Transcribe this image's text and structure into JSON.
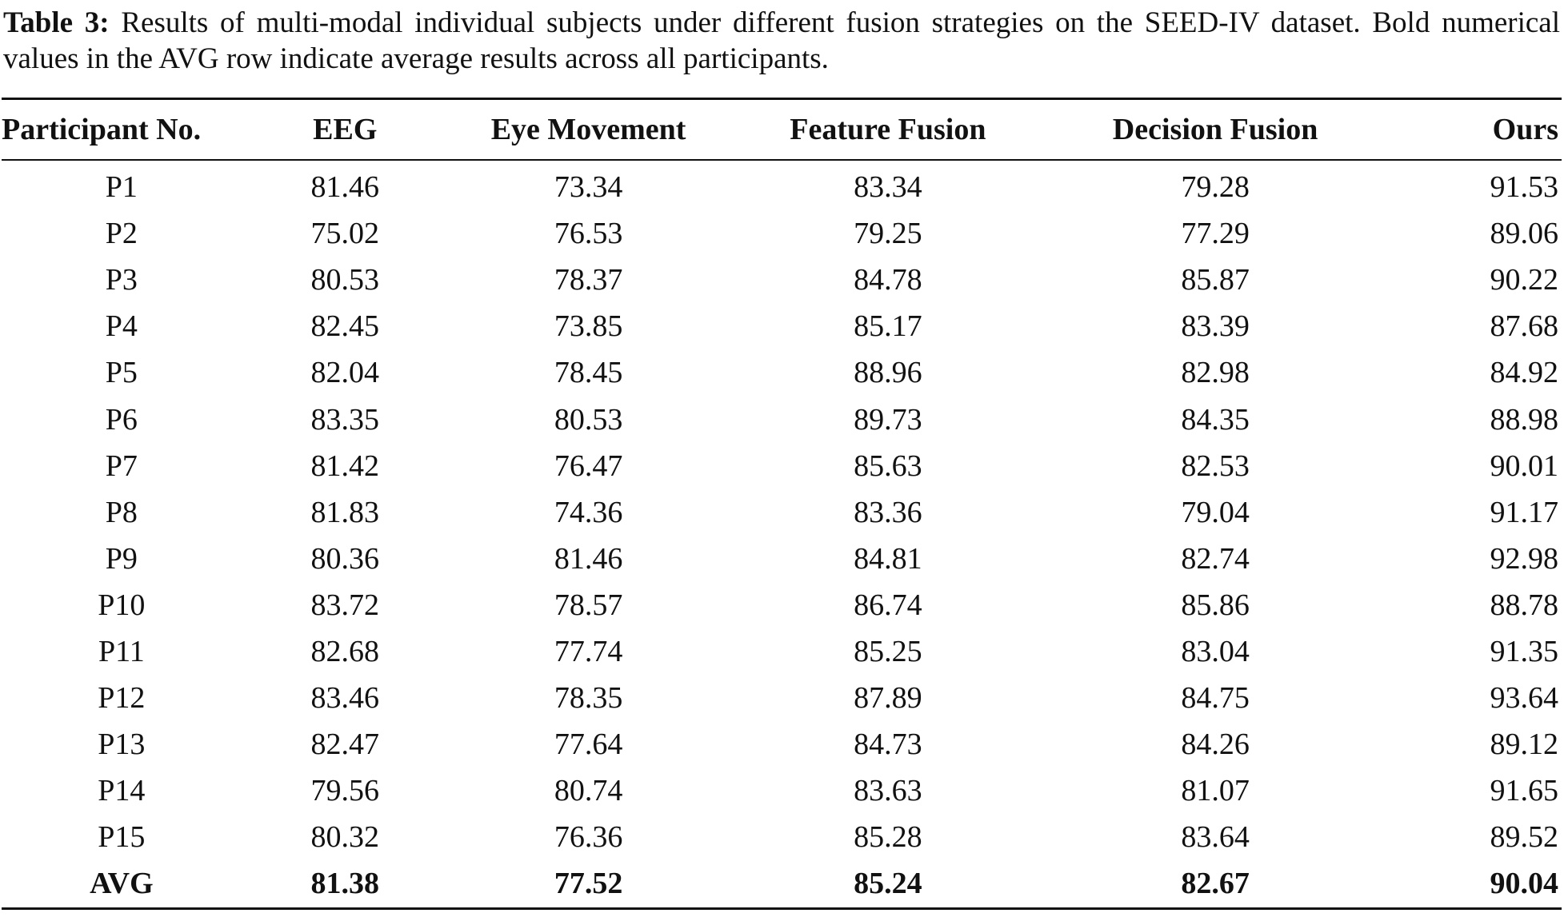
{
  "caption": {
    "label": "Table 3:",
    "text": " Results of multi-modal individual subjects under different fusion strategies on the SEED-IV dataset. Bold numerical values in the AVG row indicate average results across all participants."
  },
  "table": {
    "headers": [
      "Participant No.",
      "EEG",
      "Eye Movement",
      "Feature Fusion",
      "Decision Fusion",
      "Ours"
    ],
    "rows": [
      [
        "P1",
        "81.46",
        "73.34",
        "83.34",
        "79.28",
        "91.53"
      ],
      [
        "P2",
        "75.02",
        "76.53",
        "79.25",
        "77.29",
        "89.06"
      ],
      [
        "P3",
        "80.53",
        "78.37",
        "84.78",
        "85.87",
        "90.22"
      ],
      [
        "P4",
        "82.45",
        "73.85",
        "85.17",
        "83.39",
        "87.68"
      ],
      [
        "P5",
        "82.04",
        "78.45",
        "88.96",
        "82.98",
        "84.92"
      ],
      [
        "P6",
        "83.35",
        "80.53",
        "89.73",
        "84.35",
        "88.98"
      ],
      [
        "P7",
        "81.42",
        "76.47",
        "85.63",
        "82.53",
        "90.01"
      ],
      [
        "P8",
        "81.83",
        "74.36",
        "83.36",
        "79.04",
        "91.17"
      ],
      [
        "P9",
        "80.36",
        "81.46",
        "84.81",
        "82.74",
        "92.98"
      ],
      [
        "P10",
        "83.72",
        "78.57",
        "86.74",
        "85.86",
        "88.78"
      ],
      [
        "P11",
        "82.68",
        "77.74",
        "85.25",
        "83.04",
        "91.35"
      ],
      [
        "P12",
        "83.46",
        "78.35",
        "87.89",
        "84.75",
        "93.64"
      ],
      [
        "P13",
        "82.47",
        "77.64",
        "84.73",
        "84.26",
        "89.12"
      ],
      [
        "P14",
        "79.56",
        "80.74",
        "83.63",
        "81.07",
        "91.65"
      ],
      [
        "P15",
        "80.32",
        "76.36",
        "85.28",
        "83.64",
        "89.52"
      ]
    ],
    "avg_row": [
      "AVG",
      "81.38",
      "77.52",
      "85.24",
      "82.67",
      "90.04"
    ]
  }
}
